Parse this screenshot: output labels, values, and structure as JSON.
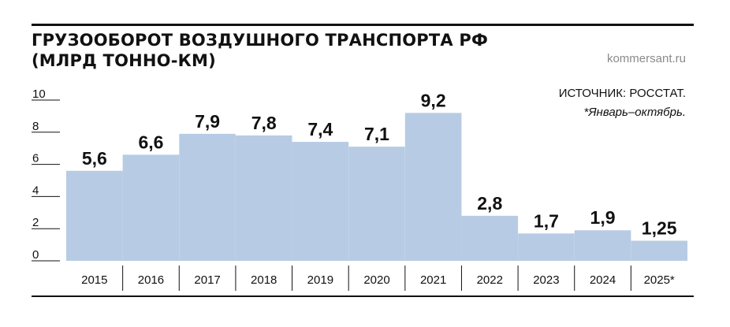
{
  "header": {
    "title_line1": "ГРУЗООБОРОТ ВОЗДУШНОГО ТРАНСПОРТА РФ",
    "title_line2": "(МЛРД ТОННО-КМ)",
    "brand": "kommersant.ru",
    "source": "ИСТОЧНИК: РОССТАТ.",
    "note": "*Январь–октябрь."
  },
  "colors": {
    "bar": "#b7cce4",
    "divider": "#ffffff",
    "axis": "#111111"
  },
  "chart_data": {
    "type": "bar",
    "title": "ГРУЗООБОРОТ ВОЗДУШНОГО ТРАНСПОРТА РФ (МЛРД ТОННО-КМ)",
    "categories": [
      "2015",
      "2016",
      "2017",
      "2018",
      "2019",
      "2020",
      "2021",
      "2022",
      "2023",
      "2024",
      "2025*"
    ],
    "values": [
      5.6,
      6.6,
      7.9,
      7.8,
      7.4,
      7.1,
      9.2,
      2.8,
      1.7,
      1.9,
      1.25
    ],
    "value_labels": [
      "5,6",
      "6,6",
      "7,9",
      "7,8",
      "7,4",
      "7,1",
      "9,2",
      "2,8",
      "1,7",
      "1,9",
      "1,25"
    ],
    "yticks": [
      0,
      2,
      4,
      6,
      8,
      10
    ],
    "ylim": [
      0,
      10
    ],
    "xlabel": "",
    "ylabel": "",
    "grid": false,
    "legend": "none"
  }
}
